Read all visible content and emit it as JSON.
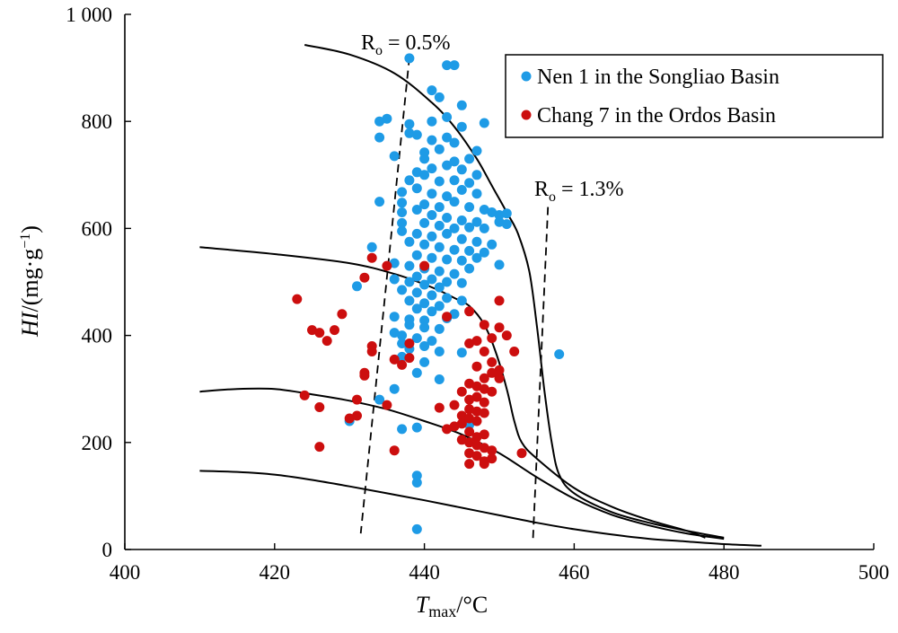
{
  "chart_data": {
    "type": "scatter",
    "title": "",
    "xlabel": "T",
    "xlabel_sub": "max",
    "xlabel_unit": "/°C",
    "ylabel": "HI",
    "ylabel_unit": "/(mg·g",
    "ylabel_exp": "−1",
    "ylabel_close": ")",
    "xlim": [
      400,
      500
    ],
    "ylim": [
      0,
      1000
    ],
    "xticks": [
      400,
      420,
      440,
      460,
      480,
      500
    ],
    "xtick_labels": [
      "400",
      "420",
      "440",
      "460",
      "480",
      "500"
    ],
    "yticks": [
      0,
      200,
      400,
      600,
      800,
      1000
    ],
    "ytick_labels": [
      "0",
      "200",
      "400",
      "600",
      "800",
      "1 000"
    ],
    "grid": false,
    "legend_position": "top-right",
    "series": [
      {
        "name": "Nen 1 in the Songliao Basin",
        "color": "#1e9be6",
        "points": [
          [
            438,
            918
          ],
          [
            443,
            905
          ],
          [
            444,
            905
          ],
          [
            441,
            858
          ],
          [
            445,
            830
          ],
          [
            442,
            845
          ],
          [
            434,
            800
          ],
          [
            435,
            805
          ],
          [
            438,
            795
          ],
          [
            441,
            800
          ],
          [
            443,
            808
          ],
          [
            448,
            797
          ],
          [
            445,
            790
          ],
          [
            434,
            770
          ],
          [
            438,
            778
          ],
          [
            439,
            775
          ],
          [
            441,
            765
          ],
          [
            443,
            770
          ],
          [
            444,
            760
          ],
          [
            447,
            745
          ],
          [
            436,
            735
          ],
          [
            440,
            742
          ],
          [
            442,
            748
          ],
          [
            446,
            730
          ],
          [
            440,
            730
          ],
          [
            443,
            718
          ],
          [
            444,
            725
          ],
          [
            439,
            705
          ],
          [
            441,
            712
          ],
          [
            445,
            710
          ],
          [
            447,
            700
          ],
          [
            438,
            690
          ],
          [
            440,
            700
          ],
          [
            442,
            688
          ],
          [
            444,
            690
          ],
          [
            446,
            685
          ],
          [
            437,
            668
          ],
          [
            439,
            675
          ],
          [
            441,
            665
          ],
          [
            443,
            660
          ],
          [
            445,
            672
          ],
          [
            447,
            665
          ],
          [
            434,
            650
          ],
          [
            437,
            648
          ],
          [
            440,
            645
          ],
          [
            442,
            640
          ],
          [
            444,
            650
          ],
          [
            446,
            640
          ],
          [
            448,
            635
          ],
          [
            449,
            630
          ],
          [
            450,
            625
          ],
          [
            451,
            628
          ],
          [
            437,
            630
          ],
          [
            439,
            635
          ],
          [
            441,
            625
          ],
          [
            443,
            620
          ],
          [
            445,
            615
          ],
          [
            447,
            612
          ],
          [
            450,
            612
          ],
          [
            437,
            610
          ],
          [
            440,
            610
          ],
          [
            442,
            605
          ],
          [
            444,
            600
          ],
          [
            446,
            602
          ],
          [
            448,
            600
          ],
          [
            451,
            608
          ],
          [
            433,
            565
          ],
          [
            437,
            595
          ],
          [
            439,
            590
          ],
          [
            441,
            585
          ],
          [
            443,
            590
          ],
          [
            445,
            580
          ],
          [
            447,
            575
          ],
          [
            449,
            570
          ],
          [
            438,
            575
          ],
          [
            440,
            570
          ],
          [
            442,
            565
          ],
          [
            444,
            560
          ],
          [
            446,
            558
          ],
          [
            448,
            555
          ],
          [
            439,
            550
          ],
          [
            441,
            545
          ],
          [
            443,
            542
          ],
          [
            445,
            540
          ],
          [
            447,
            545
          ],
          [
            450,
            532
          ],
          [
            436,
            535
          ],
          [
            438,
            530
          ],
          [
            440,
            525
          ],
          [
            442,
            520
          ],
          [
            444,
            515
          ],
          [
            446,
            525
          ],
          [
            439,
            510
          ],
          [
            441,
            505
          ],
          [
            443,
            500
          ],
          [
            445,
            498
          ],
          [
            436,
            505
          ],
          [
            438,
            500
          ],
          [
            440,
            495
          ],
          [
            442,
            490
          ],
          [
            437,
            485
          ],
          [
            439,
            480
          ],
          [
            441,
            475
          ],
          [
            443,
            470
          ],
          [
            445,
            465
          ],
          [
            438,
            465
          ],
          [
            440,
            460
          ],
          [
            442,
            455
          ],
          [
            439,
            450
          ],
          [
            441,
            445
          ],
          [
            444,
            440
          ],
          [
            436,
            435
          ],
          [
            438,
            430
          ],
          [
            440,
            428
          ],
          [
            443,
            432
          ],
          [
            438,
            420
          ],
          [
            440,
            415
          ],
          [
            442,
            412
          ],
          [
            436,
            405
          ],
          [
            437,
            400
          ],
          [
            439,
            395
          ],
          [
            441,
            390
          ],
          [
            437,
            385
          ],
          [
            440,
            380
          ],
          [
            438,
            375
          ],
          [
            442,
            370
          ],
          [
            445,
            368
          ],
          [
            458,
            365
          ],
          [
            431,
            492
          ],
          [
            437,
            360
          ],
          [
            440,
            350
          ],
          [
            439,
            330
          ],
          [
            442,
            318
          ],
          [
            434,
            280
          ],
          [
            436,
            300
          ],
          [
            430,
            240
          ],
          [
            437,
            225
          ],
          [
            439,
            228
          ],
          [
            446,
            233
          ],
          [
            439,
            138
          ],
          [
            439,
            125
          ],
          [
            439,
            38
          ]
        ]
      },
      {
        "name": "Chang 7 in the Ordos Basin",
        "color": "#cc0e0e",
        "points": [
          [
            423,
            468
          ],
          [
            425,
            410
          ],
          [
            427,
            390
          ],
          [
            429,
            440
          ],
          [
            433,
            545
          ],
          [
            435,
            530
          ],
          [
            432,
            508
          ],
          [
            440,
            530
          ],
          [
            426,
            405
          ],
          [
            428,
            410
          ],
          [
            433,
            380
          ],
          [
            433,
            370
          ],
          [
            432,
            330
          ],
          [
            432,
            325
          ],
          [
            438,
            385
          ],
          [
            436,
            355
          ],
          [
            437,
            345
          ],
          [
            443,
            435
          ],
          [
            446,
            445
          ],
          [
            450,
            465
          ],
          [
            448,
            420
          ],
          [
            450,
            415
          ],
          [
            451,
            400
          ],
          [
            449,
            395
          ],
          [
            447,
            390
          ],
          [
            448,
            370
          ],
          [
            446,
            385
          ],
          [
            452,
            370
          ],
          [
            449,
            350
          ],
          [
            447,
            342
          ],
          [
            450,
            335
          ],
          [
            449,
            330
          ],
          [
            448,
            320
          ],
          [
            450,
            320
          ],
          [
            446,
            310
          ],
          [
            447,
            305
          ],
          [
            448,
            300
          ],
          [
            445,
            295
          ],
          [
            449,
            295
          ],
          [
            447,
            285
          ],
          [
            446,
            280
          ],
          [
            448,
            275
          ],
          [
            444,
            270
          ],
          [
            442,
            265
          ],
          [
            446,
            262
          ],
          [
            447,
            258
          ],
          [
            448,
            255
          ],
          [
            445,
            250
          ],
          [
            446,
            245
          ],
          [
            447,
            240
          ],
          [
            445,
            235
          ],
          [
            444,
            230
          ],
          [
            443,
            225
          ],
          [
            446,
            220
          ],
          [
            448,
            215
          ],
          [
            447,
            210
          ],
          [
            445,
            205
          ],
          [
            446,
            200
          ],
          [
            447,
            195
          ],
          [
            448,
            190
          ],
          [
            449,
            185
          ],
          [
            446,
            180
          ],
          [
            447,
            175
          ],
          [
            449,
            170
          ],
          [
            448,
            165
          ],
          [
            446,
            160
          ],
          [
            448,
            160
          ],
          [
            453,
            180
          ],
          [
            424,
            288
          ],
          [
            426,
            266
          ],
          [
            430,
            245
          ],
          [
            431,
            250
          ],
          [
            431,
            280
          ],
          [
            435,
            270
          ],
          [
            436,
            185
          ],
          [
            426,
            192
          ],
          [
            438,
            358
          ]
        ]
      }
    ],
    "curves": [
      {
        "label": "",
        "points": [
          [
            424,
            943
          ],
          [
            430,
            925
          ],
          [
            436,
            890
          ],
          [
            441,
            835
          ],
          [
            444,
            790
          ],
          [
            447,
            730
          ],
          [
            449,
            680
          ],
          [
            451,
            630
          ],
          [
            452.5,
            590
          ],
          [
            454,
            520
          ],
          [
            455,
            420
          ],
          [
            456,
            300
          ],
          [
            457,
            200
          ],
          [
            458,
            140
          ],
          [
            460,
            105
          ],
          [
            465,
            70
          ],
          [
            470,
            50
          ],
          [
            475,
            35
          ],
          [
            480,
            22
          ]
        ]
      },
      {
        "label": "",
        "points": [
          [
            410,
            565
          ],
          [
            420,
            552
          ],
          [
            430,
            535
          ],
          [
            436,
            515
          ],
          [
            441,
            490
          ],
          [
            444,
            470
          ],
          [
            446,
            455
          ],
          [
            448,
            420
          ],
          [
            449.5,
            370
          ],
          [
            451,
            300
          ],
          [
            452,
            240
          ],
          [
            453,
            200
          ],
          [
            455,
            170
          ],
          [
            460,
            115
          ],
          [
            465,
            80
          ],
          [
            470,
            55
          ],
          [
            475,
            35
          ],
          [
            477.5,
            22
          ]
        ]
      },
      {
        "label": "",
        "points": [
          [
            410,
            295
          ],
          [
            415,
            300
          ],
          [
            420,
            300
          ],
          [
            425,
            290
          ],
          [
            430,
            278
          ],
          [
            435,
            262
          ],
          [
            440,
            240
          ],
          [
            445,
            215
          ],
          [
            450,
            180
          ],
          [
            455,
            135
          ],
          [
            460,
            95
          ],
          [
            465,
            65
          ],
          [
            470,
            45
          ],
          [
            475,
            30
          ],
          [
            480,
            20
          ]
        ]
      },
      {
        "label": "",
        "points": [
          [
            410,
            147
          ],
          [
            415,
            145
          ],
          [
            420,
            140
          ],
          [
            425,
            130
          ],
          [
            430,
            118
          ],
          [
            435,
            105
          ],
          [
            440,
            92
          ],
          [
            445,
            78
          ],
          [
            450,
            64
          ],
          [
            455,
            50
          ],
          [
            460,
            38
          ],
          [
            465,
            28
          ],
          [
            470,
            20
          ],
          [
            475,
            15
          ],
          [
            480,
            10
          ],
          [
            485,
            7
          ]
        ]
      }
    ],
    "ro_lines": [
      {
        "label_main": "R",
        "label_sub": "o",
        "label_rest": " = 0.5%",
        "points": [
          [
            438,
            920
          ],
          [
            431.5,
            30
          ]
        ]
      },
      {
        "label_main": "R",
        "label_sub": "o",
        "label_rest": " = 1.3%",
        "points": [
          [
            456.5,
            640
          ],
          [
            454.5,
            20
          ]
        ]
      }
    ]
  }
}
